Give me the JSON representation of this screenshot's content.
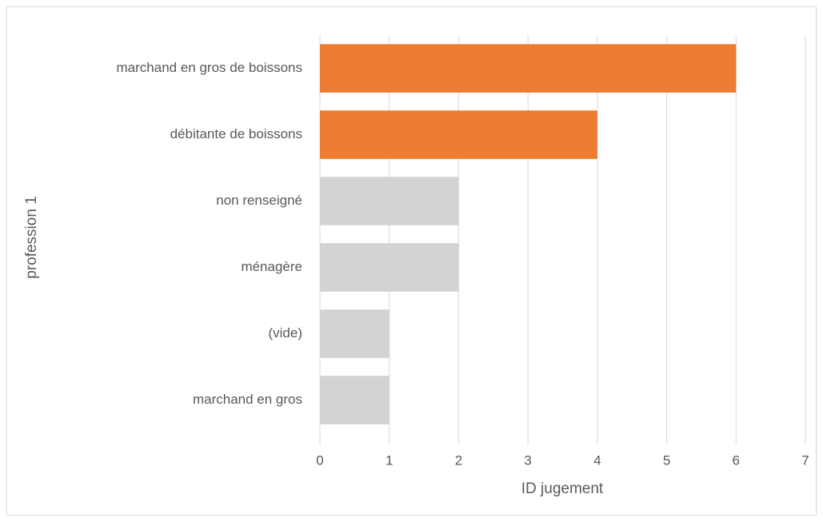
{
  "chart_data": {
    "type": "bar",
    "orientation": "horizontal",
    "categories": [
      "marchand en gros de boissons",
      "débitante de boissons",
      "non renseigné",
      "ménagère",
      "(vide)",
      "marchand en gros"
    ],
    "values": [
      6,
      4,
      2,
      2,
      1,
      1
    ],
    "colors": [
      "#ed7d31",
      "#ed7d31",
      "#d3d3d3",
      "#d3d3d3",
      "#d3d3d3",
      "#d3d3d3"
    ],
    "xlim": [
      0,
      7
    ],
    "xticks": [
      0,
      1,
      2,
      3,
      4,
      5,
      6,
      7
    ],
    "grid": true,
    "xlabel": "ID jugement",
    "ylabel": "profession 1"
  }
}
